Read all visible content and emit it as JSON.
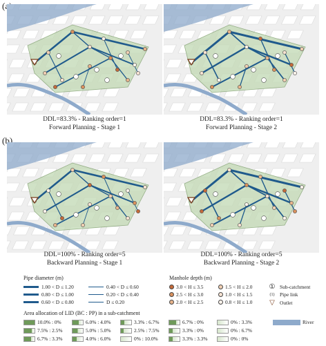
{
  "panels": {
    "a_label": "(a)",
    "b_label": "(b)"
  },
  "captions": [
    {
      "line1": "DDL=83.3% - Ranking order=1",
      "line2": "Forward Planning - Stage 1"
    },
    {
      "line1": "DDL=83.3% - Ranking order=1",
      "line2": "Forward Planning - Stage 2"
    },
    {
      "line1": "DDL=100% - Ranking order=5",
      "line2": "Backward Planning - Stage 1"
    },
    {
      "line1": "DDL=100% - Ranking order=5",
      "line2": "Backward Planning - Stage 2"
    }
  ],
  "legend": {
    "pipe_title": "Pipe diameter (m)",
    "pipe_items": [
      {
        "label": "1.00 < D ≤ 1.20"
      },
      {
        "label": "0.80 < D ≤ 1.00"
      },
      {
        "label": "0.60 < D ≤ 0.80"
      },
      {
        "label": "0.40 < D ≤ 0.60"
      },
      {
        "label": "0.20 < D ≤ 0.40"
      },
      {
        "label": "D ≤ 0.20"
      }
    ],
    "manhole_title": "Manhole depth (m)",
    "manhole_items": [
      {
        "label": "3.0 < H ≤ 3.5",
        "color": "#c46a3a"
      },
      {
        "label": "2.5 < H ≤ 3.0",
        "color": "#d9915e"
      },
      {
        "label": "2.0 < H ≤ 2.5",
        "color": "#e7b48c"
      },
      {
        "label": "1.5 < H ≤ 2.0",
        "color": "#f0cfb3"
      },
      {
        "label": "1.0 < H ≤ 1.5",
        "color": "#f7e3d3"
      },
      {
        "label": "0.8 < H ≤ 1.0",
        "color": "#fdf4ec"
      }
    ],
    "misc_items": [
      {
        "symbol": "①",
        "label": "Sub-catchment"
      },
      {
        "symbol": "(1)",
        "label": "Pipe link"
      },
      {
        "symbol": "▽",
        "label": "Outlet"
      }
    ],
    "area_title": "Area allocation of LID (BC : PP) in a sub-catchment",
    "area_items": [
      {
        "label": "10.0% : 0%",
        "bc": 1.0
      },
      {
        "label": "6.0% : 4.0%",
        "bc": 0.6
      },
      {
        "label": "3.3% : 6.7%",
        "bc": 0.33
      },
      {
        "label": "6.7% : 0%",
        "bc": 0.67
      },
      {
        "label": "0% : 3.3%",
        "bc": 0.0
      },
      {
        "label": "7.5% : 2.5%",
        "bc": 0.75
      },
      {
        "label": "5.0% : 5.0%",
        "bc": 0.5
      },
      {
        "label": "2.5% : 7.5%",
        "bc": 0.25
      },
      {
        "label": "3.3% : 0%",
        "bc": 0.33
      },
      {
        "label": "0% : 6.7%",
        "bc": 0.0
      },
      {
        "label": "6.7% : 3.3%",
        "bc": 0.67
      },
      {
        "label": "4.0% : 6.0%",
        "bc": 0.4
      },
      {
        "label": "0% : 10.0%",
        "bc": 0.0
      },
      {
        "label": "3.3% : 3.3%",
        "bc": 0.33
      },
      {
        "label": "0% : 0%",
        "bc": 0.0
      }
    ],
    "river_label": "River",
    "river_color": "#8eaacb",
    "green_color": "#6f9a5a",
    "pipe_color": "#1f5a8c"
  }
}
